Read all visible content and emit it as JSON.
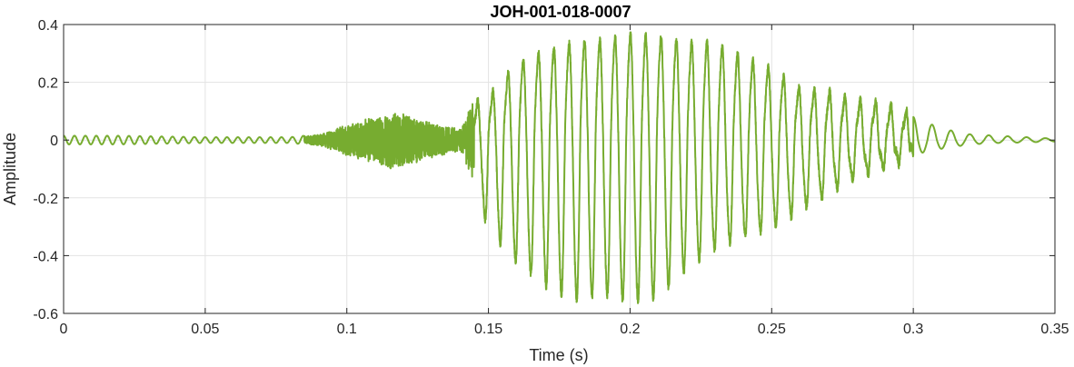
{
  "chart_data": {
    "type": "line",
    "title": "JOH-001-018-0007",
    "xlabel": "Time (s)",
    "ylabel": "Amplitude",
    "xlim": [
      0,
      0.35
    ],
    "ylim": [
      -0.6,
      0.4
    ],
    "grid": true,
    "x_ticks": [
      0,
      0.05,
      0.1,
      0.15,
      0.2,
      0.25,
      0.3,
      0.35
    ],
    "x_tick_labels": [
      "0",
      "0.05",
      "0.1",
      "0.15",
      "0.2",
      "0.25",
      "0.3",
      "0.35"
    ],
    "y_ticks": [
      -0.6,
      -0.4,
      -0.2,
      0,
      0.2,
      0.4
    ],
    "y_tick_labels": [
      "-0.6",
      "-0.4",
      "-0.2",
      "0",
      "0.2",
      "0.4"
    ],
    "series": [
      {
        "color": "#77ac30",
        "envelope_time": [
          0,
          0.02,
          0.05,
          0.08,
          0.09,
          0.1,
          0.11,
          0.115,
          0.12,
          0.13,
          0.14,
          0.145,
          0.15,
          0.16,
          0.17,
          0.18,
          0.19,
          0.2,
          0.21,
          0.22,
          0.23,
          0.24,
          0.25,
          0.26,
          0.27,
          0.28,
          0.29,
          0.3,
          0.31,
          0.32,
          0.33,
          0.34,
          0.35
        ],
        "envelope_upper": [
          0.015,
          0.015,
          0.01,
          0.01,
          0.02,
          0.05,
          0.08,
          0.11,
          0.1,
          0.07,
          0.04,
          0.12,
          0.14,
          0.26,
          0.3,
          0.33,
          0.34,
          0.36,
          0.35,
          0.33,
          0.33,
          0.28,
          0.24,
          0.17,
          0.16,
          0.13,
          0.12,
          0.08,
          0.04,
          0.02,
          0.015,
          0.01,
          0.005
        ],
        "envelope_lower": [
          -0.015,
          -0.015,
          -0.01,
          -0.01,
          -0.02,
          -0.06,
          -0.09,
          -0.1,
          -0.1,
          -0.06,
          -0.04,
          -0.16,
          -0.3,
          -0.42,
          -0.5,
          -0.55,
          -0.53,
          -0.56,
          -0.54,
          -0.44,
          -0.37,
          -0.33,
          -0.3,
          -0.24,
          -0.18,
          -0.12,
          -0.09,
          -0.05,
          -0.03,
          -0.015,
          -0.01,
          -0.008,
          -0.005
        ]
      }
    ]
  }
}
